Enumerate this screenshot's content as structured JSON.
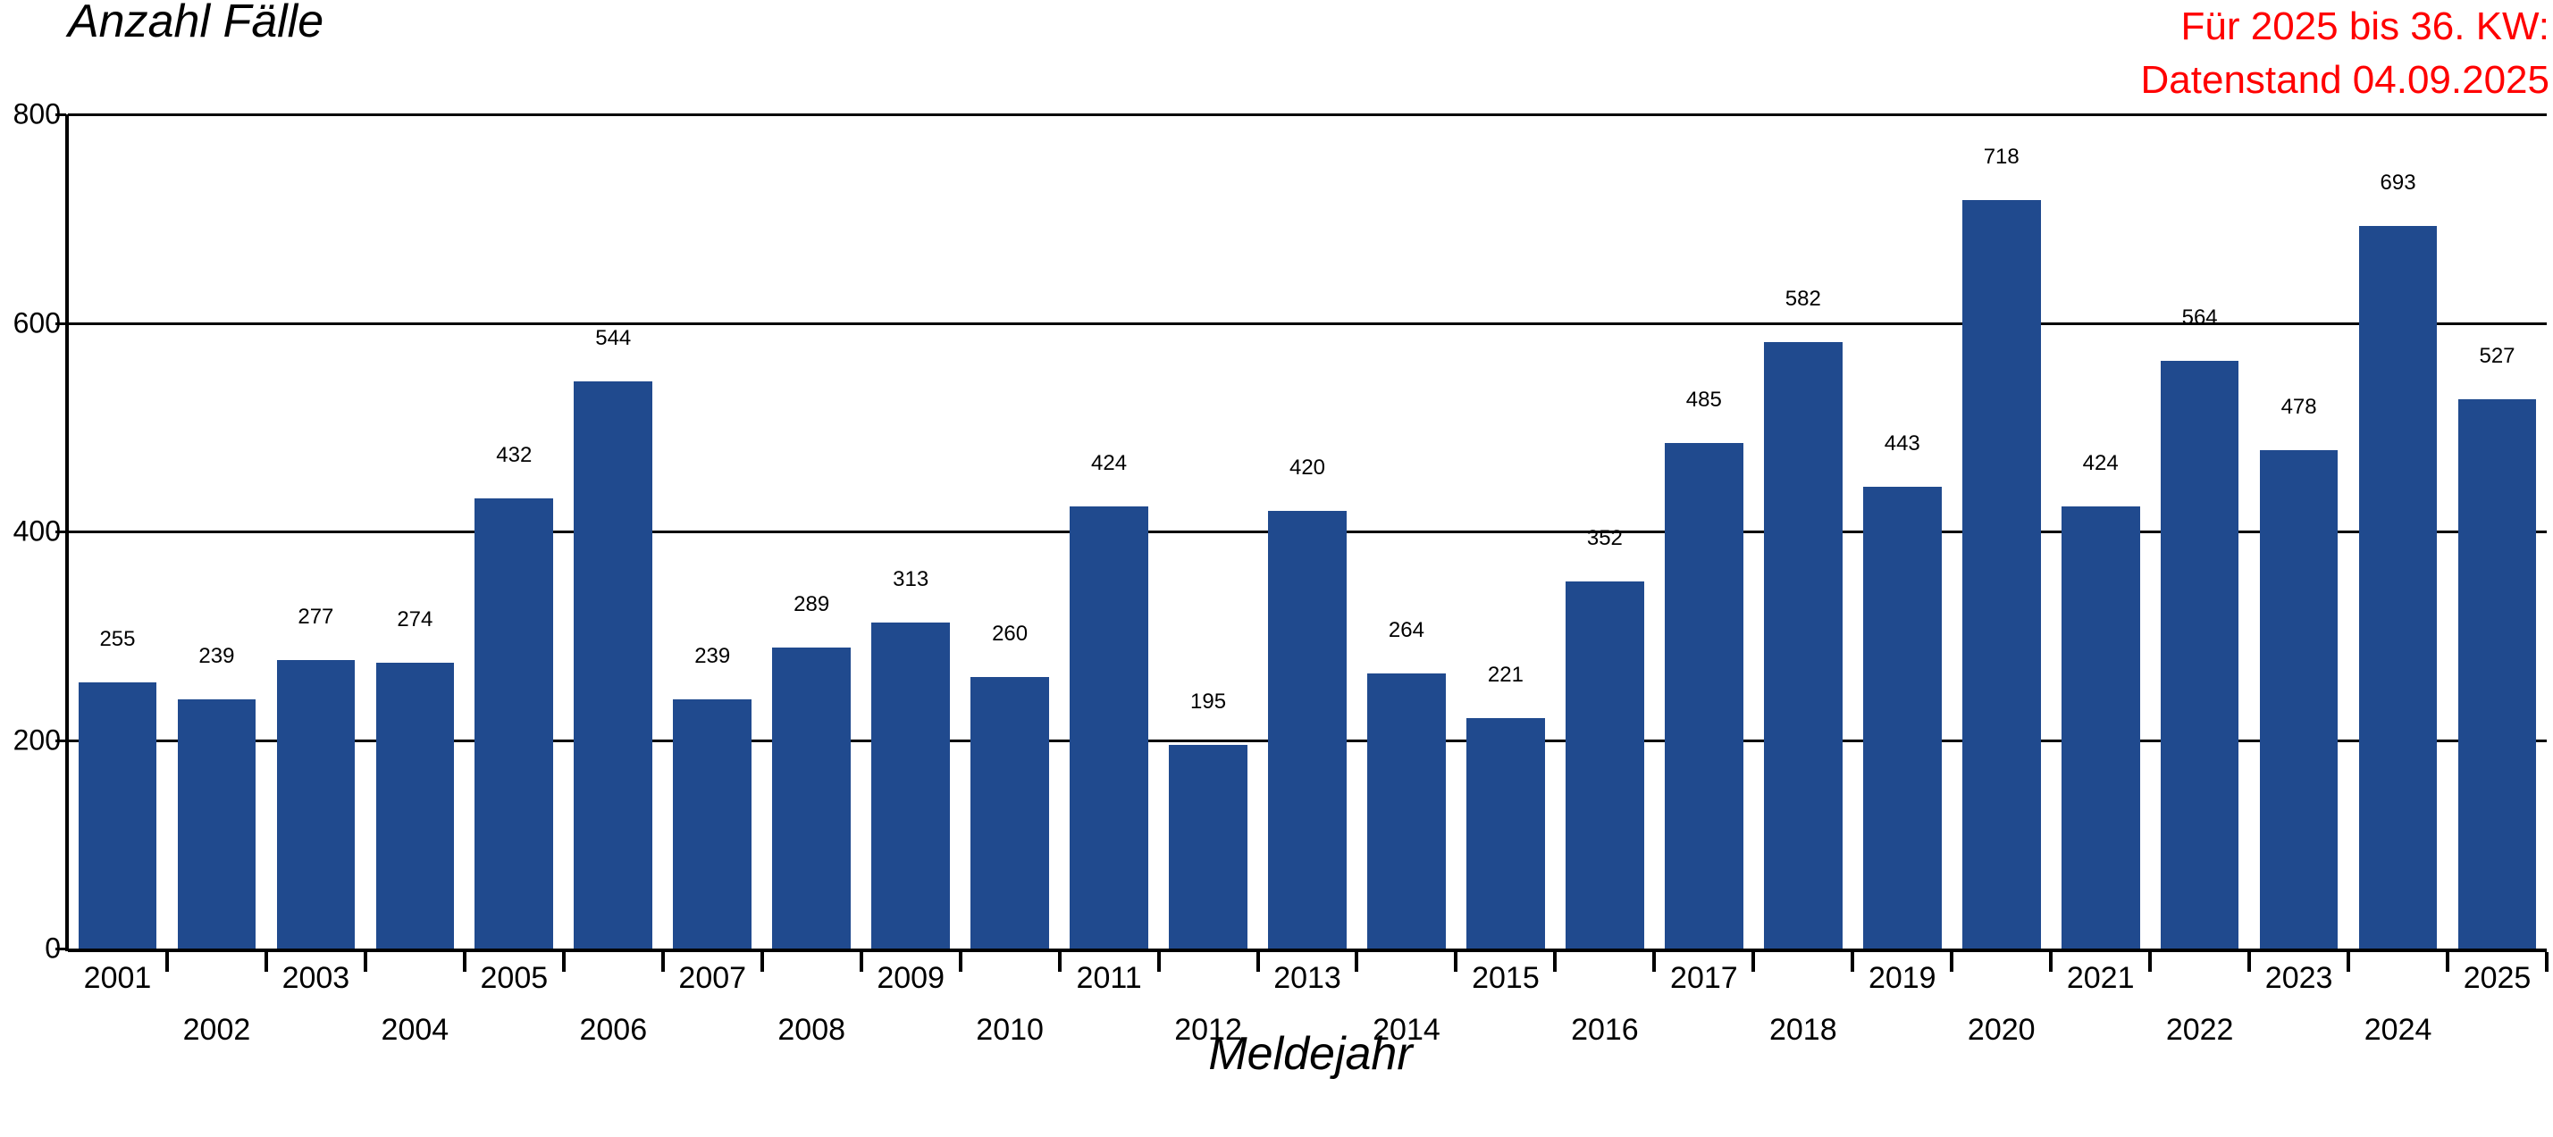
{
  "chart_data": {
    "type": "bar",
    "title": "",
    "ylabel": "Anzahl Fälle",
    "xlabel": "Meldejahr",
    "annotation": [
      "Für 2025 bis 36. KW:",
      "Datenstand 04.09.2025"
    ],
    "ylim": [
      0,
      800
    ],
    "yticks": [
      0,
      200,
      400,
      600,
      800
    ],
    "grid": true,
    "bar_color": "#204A8E",
    "annotation_color": "#FF0000",
    "categories": [
      "2001",
      "2002",
      "2003",
      "2004",
      "2005",
      "2006",
      "2007",
      "2008",
      "2009",
      "2010",
      "2011",
      "2012",
      "2013",
      "2014",
      "2015",
      "2016",
      "2017",
      "2018",
      "2019",
      "2020",
      "2021",
      "2022",
      "2023",
      "2024",
      "2025"
    ],
    "values": [
      255,
      239,
      277,
      274,
      432,
      544,
      239,
      289,
      313,
      260,
      424,
      195,
      420,
      264,
      221,
      352,
      485,
      582,
      443,
      718,
      424,
      564,
      478,
      693,
      527
    ]
  }
}
